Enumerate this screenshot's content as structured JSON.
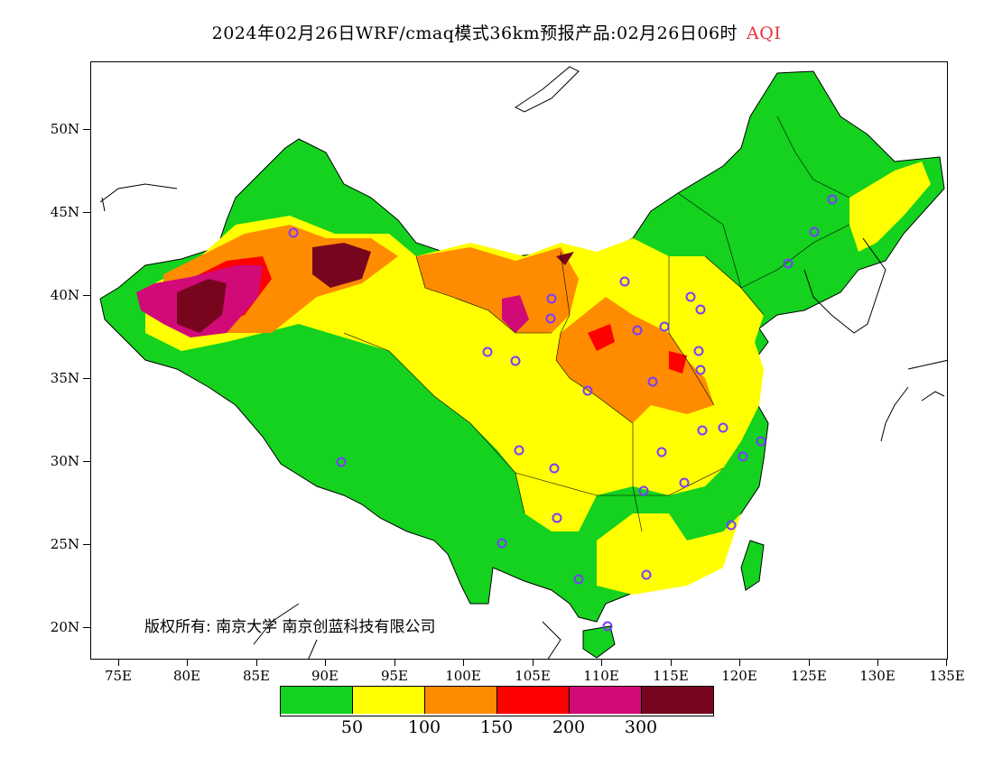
{
  "header": {
    "title": "2024年02月26日WRF/cmaq模式36km预报产品:02月26日06时",
    "variable": "AQI",
    "variable_color": "#e8323c"
  },
  "axes": {
    "lat_labels": [
      "50N",
      "45N",
      "40N",
      "35N",
      "30N",
      "25N",
      "20N"
    ],
    "lon_labels": [
      "75E",
      "80E",
      "85E",
      "90E",
      "95E",
      "100E",
      "105E",
      "110E",
      "115E",
      "120E",
      "125E",
      "130E",
      "135E"
    ]
  },
  "copyright": "版权所有: 南京大学  南京创蓝科技有限公司",
  "legend": {
    "colors": [
      "#14d21e",
      "#ffff00",
      "#ff8c00",
      "#ff0000",
      "#d20a78",
      "#78051e"
    ],
    "labels": [
      "50",
      "100",
      "150",
      "200",
      "300"
    ]
  }
}
